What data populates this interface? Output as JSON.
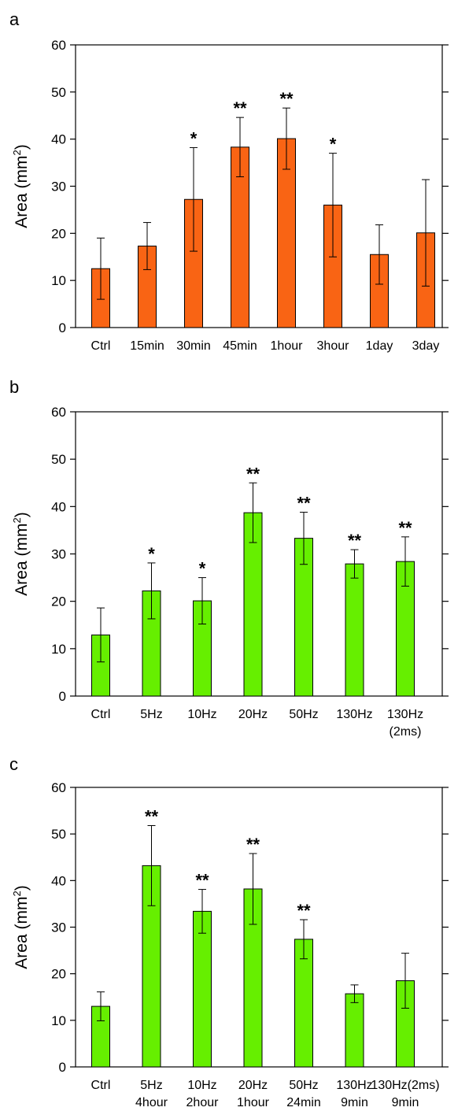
{
  "chart_data": [
    {
      "panel": "a",
      "type": "bar",
      "ylabel": "Area (mm",
      "ylabel_sup": "2",
      "ylabel_close": ")",
      "ylim": [
        0,
        60
      ],
      "yticks": [
        "0",
        "10",
        "20",
        "30",
        "40",
        "50",
        "60"
      ],
      "bar_color": "#f96414",
      "categories": [
        [
          "Ctrl"
        ],
        [
          "15min"
        ],
        [
          "30min"
        ],
        [
          "45min"
        ],
        [
          "1hour"
        ],
        [
          "3hour"
        ],
        [
          "1day"
        ],
        [
          "3day"
        ]
      ],
      "values": [
        12.5,
        17.3,
        27.2,
        38.3,
        40.1,
        26.0,
        15.5,
        20.1
      ],
      "errors": [
        6.5,
        5.0,
        11.0,
        6.3,
        6.5,
        11.0,
        6.3,
        11.3
      ],
      "significance": [
        "",
        "",
        "*",
        "**",
        "**",
        "*",
        "",
        ""
      ]
    },
    {
      "panel": "b",
      "type": "bar",
      "ylabel": "Area (mm",
      "ylabel_sup": "2",
      "ylabel_close": ")",
      "ylim": [
        0,
        60
      ],
      "yticks": [
        "0",
        "10",
        "20",
        "30",
        "40",
        "50",
        "60"
      ],
      "bar_color": "#66ef00",
      "categories": [
        [
          "Ctrl"
        ],
        [
          "5Hz"
        ],
        [
          "10Hz"
        ],
        [
          "20Hz"
        ],
        [
          "50Hz"
        ],
        [
          "130Hz"
        ],
        [
          "130Hz",
          "(2ms)"
        ]
      ],
      "values": [
        12.9,
        22.2,
        20.1,
        38.7,
        33.3,
        27.9,
        28.4
      ],
      "errors": [
        5.7,
        5.9,
        4.9,
        6.3,
        5.5,
        3.0,
        5.2
      ],
      "significance": [
        "",
        "*",
        "*",
        "**",
        "**",
        "**",
        "**"
      ]
    },
    {
      "panel": "c",
      "type": "bar",
      "ylabel": "Area (mm",
      "ylabel_sup": "2",
      "ylabel_close": ")",
      "ylim": [
        0,
        60
      ],
      "yticks": [
        "0",
        "10",
        "20",
        "30",
        "40",
        "50",
        "60"
      ],
      "bar_color": "#66ef00",
      "categories": [
        [
          "Ctrl"
        ],
        [
          "5Hz",
          "4hour"
        ],
        [
          "10Hz",
          "2hour"
        ],
        [
          "20Hz",
          "1hour"
        ],
        [
          "50Hz",
          "24min"
        ],
        [
          "130Hz",
          "9min"
        ],
        [
          "130Hz(2ms)",
          "9min"
        ]
      ],
      "values": [
        13.0,
        43.2,
        33.4,
        38.2,
        27.4,
        15.7,
        18.5
      ],
      "errors": [
        3.1,
        8.6,
        4.7,
        7.6,
        4.2,
        1.9,
        5.9
      ],
      "significance": [
        "",
        "**",
        "**",
        "**",
        "**",
        "",
        ""
      ]
    }
  ]
}
